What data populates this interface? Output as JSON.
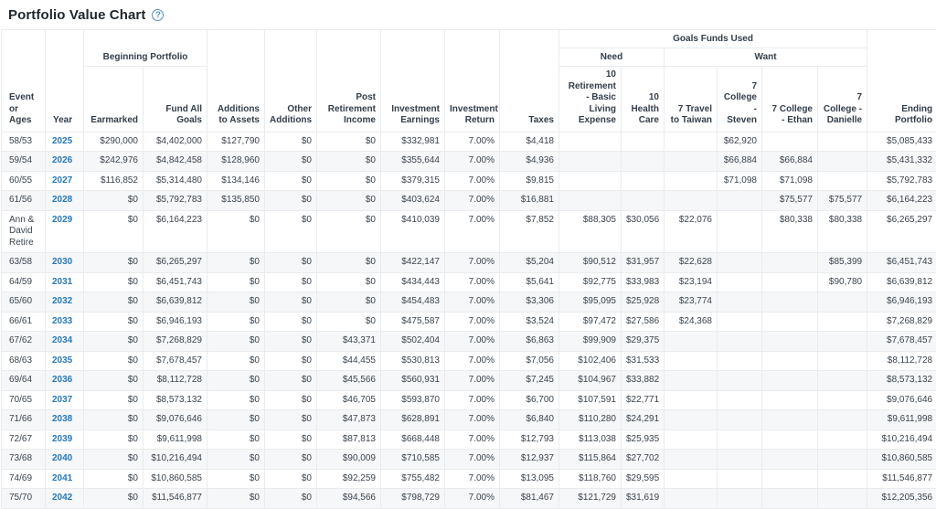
{
  "title": "Portfolio Value Chart",
  "help_icon": "?",
  "colors": {
    "accent_blue": "#2478bd",
    "text": "#39434d",
    "stripe": "#f6f7f8",
    "border": "#e9ebee",
    "help_icon_blue": "#4d8fcc"
  },
  "table": {
    "group_headers": {
      "beginning_portfolio": "Beginning Portfolio",
      "goals_funds_used": "Goals Funds Used",
      "need": "Need",
      "want": "Want"
    },
    "columns": [
      "Event or Ages",
      "Year",
      "Earmarked",
      "Fund All Goals",
      "Additions to Assets",
      "Other Additions",
      "Post Retirement Income",
      "Investment Earnings",
      "Investment Return",
      "Taxes",
      "10 Retirement - Basic Living Expense",
      "10 Health Care",
      "7 Travel to Taiwan",
      "7 College - Steven",
      "7 College - Ethan",
      "7 College - Danielle",
      "Ending Portfolio"
    ],
    "rows": [
      {
        "event": "58/53",
        "year": "2025",
        "values": [
          "$290,000",
          "$4,402,000",
          "$127,790",
          "$0",
          "$0",
          "$332,981",
          "7.00%",
          "$4,418",
          "",
          "",
          "",
          "$62,920",
          "",
          "",
          "$5,085,433"
        ]
      },
      {
        "event": "59/54",
        "year": "2026",
        "values": [
          "$242,976",
          "$4,842,458",
          "$128,960",
          "$0",
          "$0",
          "$355,644",
          "7.00%",
          "$4,936",
          "",
          "",
          "",
          "$66,884",
          "$66,884",
          "",
          "$5,431,332"
        ]
      },
      {
        "event": "60/55",
        "year": "2027",
        "values": [
          "$116,852",
          "$5,314,480",
          "$134,146",
          "$0",
          "$0",
          "$379,315",
          "7.00%",
          "$9,815",
          "",
          "",
          "",
          "$71,098",
          "$71,098",
          "",
          "$5,792,783"
        ]
      },
      {
        "event": "61/56",
        "year": "2028",
        "values": [
          "$0",
          "$5,792,783",
          "$135,850",
          "$0",
          "$0",
          "$403,624",
          "7.00%",
          "$16,881",
          "",
          "",
          "",
          "",
          "$75,577",
          "$75,577",
          "$6,164,223"
        ]
      },
      {
        "event": "Ann & David Retire",
        "year": "2029",
        "values": [
          "$0",
          "$6,164,223",
          "$0",
          "$0",
          "$0",
          "$410,039",
          "7.00%",
          "$7,852",
          "$88,305",
          "$30,056",
          "$22,076",
          "",
          "$80,338",
          "$80,338",
          "$6,265,297"
        ]
      },
      {
        "event": "63/58",
        "year": "2030",
        "values": [
          "$0",
          "$6,265,297",
          "$0",
          "$0",
          "$0",
          "$422,147",
          "7.00%",
          "$5,204",
          "$90,512",
          "$31,957",
          "$22,628",
          "",
          "",
          "$85,399",
          "$6,451,743"
        ]
      },
      {
        "event": "64/59",
        "year": "2031",
        "values": [
          "$0",
          "$6,451,743",
          "$0",
          "$0",
          "$0",
          "$434,443",
          "7.00%",
          "$5,641",
          "$92,775",
          "$33,983",
          "$23,194",
          "",
          "",
          "$90,780",
          "$6,639,812"
        ]
      },
      {
        "event": "65/60",
        "year": "2032",
        "values": [
          "$0",
          "$6,639,812",
          "$0",
          "$0",
          "$0",
          "$454,483",
          "7.00%",
          "$3,306",
          "$95,095",
          "$25,928",
          "$23,774",
          "",
          "",
          "",
          "$6,946,193"
        ]
      },
      {
        "event": "66/61",
        "year": "2033",
        "values": [
          "$0",
          "$6,946,193",
          "$0",
          "$0",
          "$0",
          "$475,587",
          "7.00%",
          "$3,524",
          "$97,472",
          "$27,586",
          "$24,368",
          "",
          "",
          "",
          "$7,268,829"
        ]
      },
      {
        "event": "67/62",
        "year": "2034",
        "values": [
          "$0",
          "$7,268,829",
          "$0",
          "$0",
          "$43,371",
          "$502,404",
          "7.00%",
          "$6,863",
          "$99,909",
          "$29,375",
          "",
          "",
          "",
          "",
          "$7,678,457"
        ]
      },
      {
        "event": "68/63",
        "year": "2035",
        "values": [
          "$0",
          "$7,678,457",
          "$0",
          "$0",
          "$44,455",
          "$530,813",
          "7.00%",
          "$7,056",
          "$102,406",
          "$31,533",
          "",
          "",
          "",
          "",
          "$8,112,728"
        ]
      },
      {
        "event": "69/64",
        "year": "2036",
        "values": [
          "$0",
          "$8,112,728",
          "$0",
          "$0",
          "$45,566",
          "$560,931",
          "7.00%",
          "$7,245",
          "$104,967",
          "$33,882",
          "",
          "",
          "",
          "",
          "$8,573,132"
        ]
      },
      {
        "event": "70/65",
        "year": "2037",
        "values": [
          "$0",
          "$8,573,132",
          "$0",
          "$0",
          "$46,705",
          "$593,870",
          "7.00%",
          "$6,700",
          "$107,591",
          "$22,771",
          "",
          "",
          "",
          "",
          "$9,076,646"
        ]
      },
      {
        "event": "71/66",
        "year": "2038",
        "values": [
          "$0",
          "$9,076,646",
          "$0",
          "$0",
          "$47,873",
          "$628,891",
          "7.00%",
          "$6,840",
          "$110,280",
          "$24,291",
          "",
          "",
          "",
          "",
          "$9,611,998"
        ]
      },
      {
        "event": "72/67",
        "year": "2039",
        "values": [
          "$0",
          "$9,611,998",
          "$0",
          "$0",
          "$87,813",
          "$668,448",
          "7.00%",
          "$12,793",
          "$113,038",
          "$25,935",
          "",
          "",
          "",
          "",
          "$10,216,494"
        ]
      },
      {
        "event": "73/68",
        "year": "2040",
        "values": [
          "$0",
          "$10,216,494",
          "$0",
          "$0",
          "$90,009",
          "$710,585",
          "7.00%",
          "$12,937",
          "$115,864",
          "$27,702",
          "",
          "",
          "",
          "",
          "$10,860,585"
        ]
      },
      {
        "event": "74/69",
        "year": "2041",
        "values": [
          "$0",
          "$10,860,585",
          "$0",
          "$0",
          "$92,259",
          "$755,482",
          "7.00%",
          "$13,095",
          "$118,760",
          "$29,595",
          "",
          "",
          "",
          "",
          "$11,546,877"
        ]
      },
      {
        "event": "75/70",
        "year": "2042",
        "values": [
          "$0",
          "$11,546,877",
          "$0",
          "$0",
          "$94,566",
          "$798,729",
          "7.00%",
          "$81,467",
          "$121,729",
          "$31,619",
          "",
          "",
          "",
          "",
          "$12,205,356"
        ]
      }
    ]
  }
}
